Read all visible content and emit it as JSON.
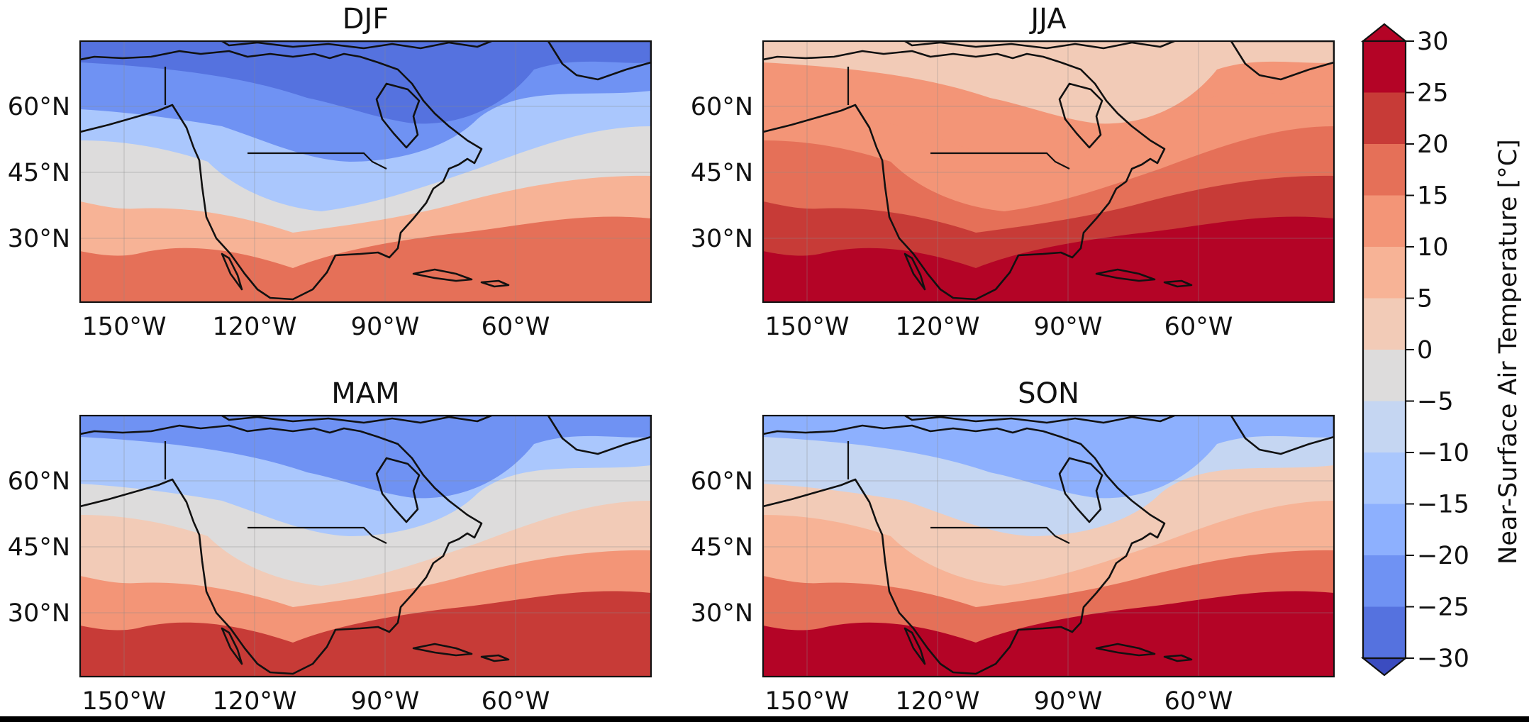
{
  "chart_data": {
    "type": "heatmap",
    "colorbar": {
      "label": "Near-Surface Air Temperature [°C]",
      "min": -30,
      "max": 30,
      "step": 5,
      "ticks": [
        "30",
        "25",
        "20",
        "15",
        "10",
        "5",
        "0",
        "−5",
        "−10",
        "−15",
        "−20",
        "−25",
        "−30"
      ],
      "colors": [
        "#3b4cc0",
        "#5572df",
        "#6f92f3",
        "#8db0fe",
        "#aac7fd",
        "#c5d6f2",
        "#dddcdc",
        "#f2cbb7",
        "#f7b396",
        "#f39577",
        "#e57058",
        "#c73b37",
        "#b40426"
      ],
      "extend": "both"
    },
    "panels": [
      {
        "name": "djf",
        "title": "DJF",
        "lat_labels": [
          "60°N",
          "45°N",
          "30°N"
        ],
        "lon_labels": [
          "150°W",
          "120°W",
          "90°W",
          "60°W"
        ],
        "levels": [
          -30,
          -22,
          -12,
          -2,
          8,
          18
        ]
      },
      {
        "name": "jja",
        "title": "JJA",
        "lat_labels": [
          "60°N",
          "45°N",
          "30°N"
        ],
        "lon_labels": [
          "150°W",
          "120°W",
          "90°W",
          "60°W"
        ],
        "levels": [
          3,
          10,
          14,
          18,
          22,
          27
        ]
      },
      {
        "name": "mam",
        "title": "MAM",
        "lat_labels": [
          "60°N",
          "45°N",
          "30°N"
        ],
        "lon_labels": [
          "150°W",
          "120°W",
          "90°W",
          "60°W"
        ],
        "levels": [
          -22,
          -12,
          -4,
          4,
          12,
          22
        ]
      },
      {
        "name": "son",
        "title": "SON",
        "lat_labels": [
          "60°N",
          "45°N",
          "30°N"
        ],
        "lon_labels": [
          "150°W",
          "120°W",
          "90°W",
          "60°W"
        ],
        "levels": [
          -18,
          -8,
          0,
          8,
          16,
          25
        ]
      }
    ]
  }
}
